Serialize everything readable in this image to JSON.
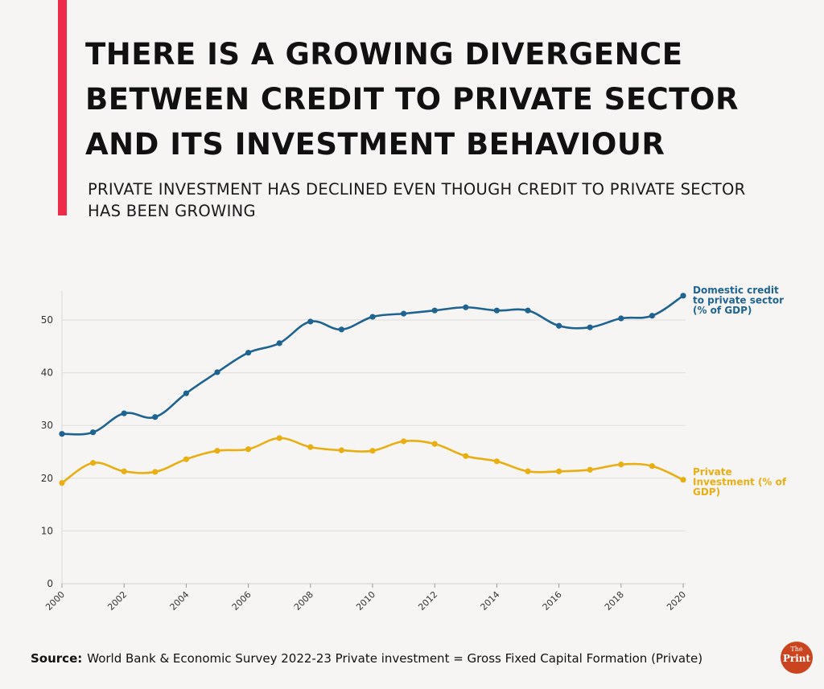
{
  "header": {
    "title": "THERE IS A GROWING DIVERGENCE BETWEEN CREDIT TO PRIVATE SECTOR AND ITS INVESTMENT BEHAVIOUR",
    "subtitle": "PRIVATE INVESTMENT HAS DECLINED EVEN THOUGH CREDIT TO PRIVATE SECTOR HAS BEEN GROWING"
  },
  "footer": {
    "source_label": "Source:",
    "source_text": "World Bank & Economic Survey 2022-23 Private investment = Gross Fixed Capital Formation (Private)",
    "logo_line1": "The",
    "logo_line2": "Print"
  },
  "chart_data": {
    "type": "line",
    "x": [
      2000,
      2001,
      2002,
      2003,
      2004,
      2005,
      2006,
      2007,
      2008,
      2009,
      2010,
      2011,
      2012,
      2013,
      2014,
      2015,
      2016,
      2017,
      2018,
      2019,
      2020
    ],
    "xticks": [
      "2000",
      "2002",
      "2004",
      "2006",
      "2008",
      "2010",
      "2012",
      "2014",
      "2016",
      "2018",
      "2020"
    ],
    "yticks": [
      "0",
      "10",
      "20",
      "30",
      "40",
      "50"
    ],
    "ylim": [
      0,
      55
    ],
    "grid": true,
    "legend": "end-of-line labels",
    "series": [
      {
        "name": "Domestic credit to private sector (% of GDP)",
        "color": "#1f6391",
        "values": [
          28.4,
          28.7,
          32.3,
          31.6,
          36.1,
          40.1,
          43.8,
          45.6,
          49.7,
          48.2,
          50.6,
          51.2,
          51.8,
          52.4,
          51.8,
          51.8,
          48.9,
          48.6,
          50.3,
          50.8,
          54.6
        ]
      },
      {
        "name": "Private Investment (% of GDP)",
        "color": "#e8ae12",
        "values": [
          19.1,
          22.9,
          21.3,
          21.2,
          23.6,
          25.2,
          25.5,
          27.6,
          25.9,
          25.3,
          25.2,
          27.0,
          26.5,
          24.2,
          23.2,
          21.3,
          21.3,
          21.6,
          22.6,
          22.3,
          19.7
        ]
      }
    ],
    "label_lines": [
      [
        "Domestic credit",
        "to private sector",
        "(% of GDP)"
      ],
      [
        "Private",
        "Investment (% of",
        "GDP)"
      ]
    ]
  }
}
